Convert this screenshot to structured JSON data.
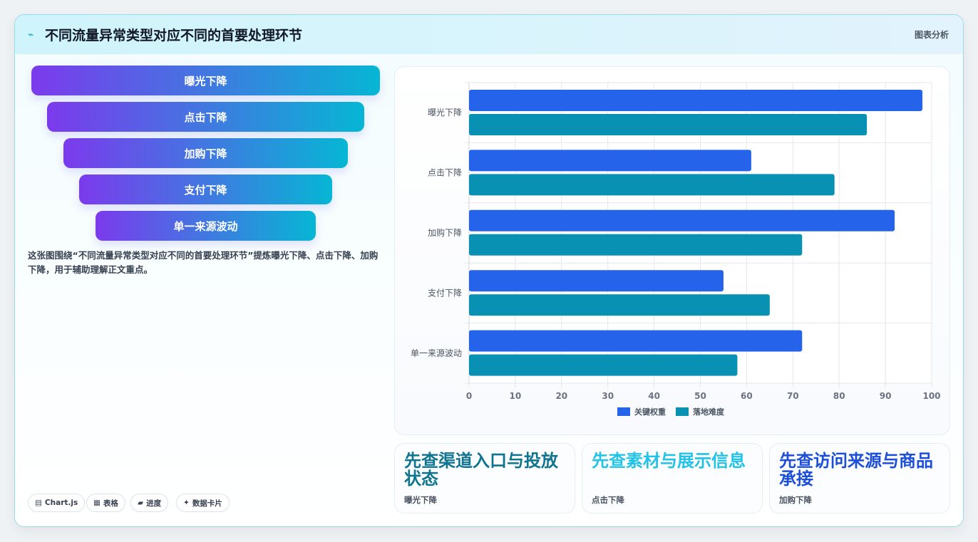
{
  "header": {
    "icon": "chart-icon",
    "title": "不同流量异常类型对应不同的首要处理环节",
    "tag": "图表分析"
  },
  "funnel": {
    "steps": [
      "曝光下降",
      "点击下降",
      "加购下降",
      "支付下降",
      "单一来源波动"
    ]
  },
  "description": "这张图围绕“不同流量异常类型对应不同的首要处理环节”提炼曝光下降、点击下降、加购下降，用于辅助理解正文重点。",
  "chips": [
    {
      "icon": "▤",
      "label": "Chart.js"
    },
    {
      "icon": "▦",
      "label": "表格"
    },
    {
      "icon": "▰",
      "label": "进度"
    },
    {
      "icon": "✦",
      "label": "数据卡片"
    }
  ],
  "chart_data": {
    "type": "bar",
    "orientation": "horizontal",
    "categories": [
      "曝光下降",
      "点击下降",
      "加购下降",
      "支付下降",
      "单一来源波动"
    ],
    "series": [
      {
        "name": "关键权重",
        "values": [
          98,
          61,
          92,
          55,
          72
        ],
        "color": "#2563eb"
      },
      {
        "name": "落地难度",
        "values": [
          86,
          79,
          72,
          65,
          58
        ],
        "color": "#0891b2"
      }
    ],
    "xlim": [
      0,
      100
    ],
    "xticks": [
      0,
      10,
      20,
      30,
      40,
      50,
      60,
      70,
      80,
      90,
      100
    ],
    "grid": true,
    "legend": "bottom"
  },
  "kpis": [
    {
      "title": "先查渠道入口与投放状态",
      "sub": "曝光下降",
      "color": "#0e7490"
    },
    {
      "title": "先查素材与展示信息",
      "sub": "点击下降",
      "color": "#22c3e6"
    },
    {
      "title": "先查访问来源与商品承接",
      "sub": "加购下降",
      "color": "#1d4ed8"
    }
  ]
}
